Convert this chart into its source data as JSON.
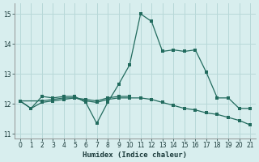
{
  "xlabel": "Humidex (Indice chaleur)",
  "xlim": [
    -0.5,
    21.5
  ],
  "ylim": [
    10.85,
    15.35
  ],
  "yticks": [
    11,
    12,
    13,
    14,
    15
  ],
  "xticks": [
    0,
    1,
    2,
    3,
    4,
    5,
    6,
    7,
    8,
    9,
    10,
    11,
    12,
    13,
    14,
    15,
    16,
    17,
    18,
    19,
    20,
    21
  ],
  "line1_x": [
    0,
    1,
    2,
    3,
    4,
    5,
    6,
    7,
    8,
    9,
    10,
    11,
    12,
    13,
    14,
    15,
    16,
    17,
    18,
    19,
    20,
    21
  ],
  "line1_y": [
    12.1,
    11.85,
    12.25,
    12.2,
    12.25,
    12.25,
    12.05,
    11.35,
    12.05,
    12.65,
    13.3,
    15.0,
    14.75,
    13.75,
    13.8,
    13.75,
    13.8,
    13.05,
    12.2,
    12.2,
    11.85,
    11.85
  ],
  "line2_x": [
    0,
    1,
    2,
    3,
    4,
    5,
    6,
    7,
    8,
    9,
    10,
    11,
    12,
    13,
    14,
    15,
    16,
    17,
    18,
    19,
    20,
    21
  ],
  "line2_y": [
    12.1,
    11.85,
    12.05,
    12.1,
    12.15,
    12.2,
    12.1,
    12.05,
    12.15,
    12.2,
    12.2,
    12.2,
    12.15,
    12.05,
    11.95,
    11.85,
    11.8,
    11.7,
    11.65,
    11.55,
    11.45,
    11.3
  ],
  "line3_x": [
    0,
    2,
    3,
    4,
    5,
    6,
    7,
    8,
    9,
    10
  ],
  "line3_y": [
    12.1,
    12.1,
    12.15,
    12.2,
    12.2,
    12.15,
    12.1,
    12.2,
    12.25,
    12.25
  ],
  "line_color": "#226b5e",
  "bg_color": "#d8eeee",
  "grid_color": "#b8d8d8"
}
